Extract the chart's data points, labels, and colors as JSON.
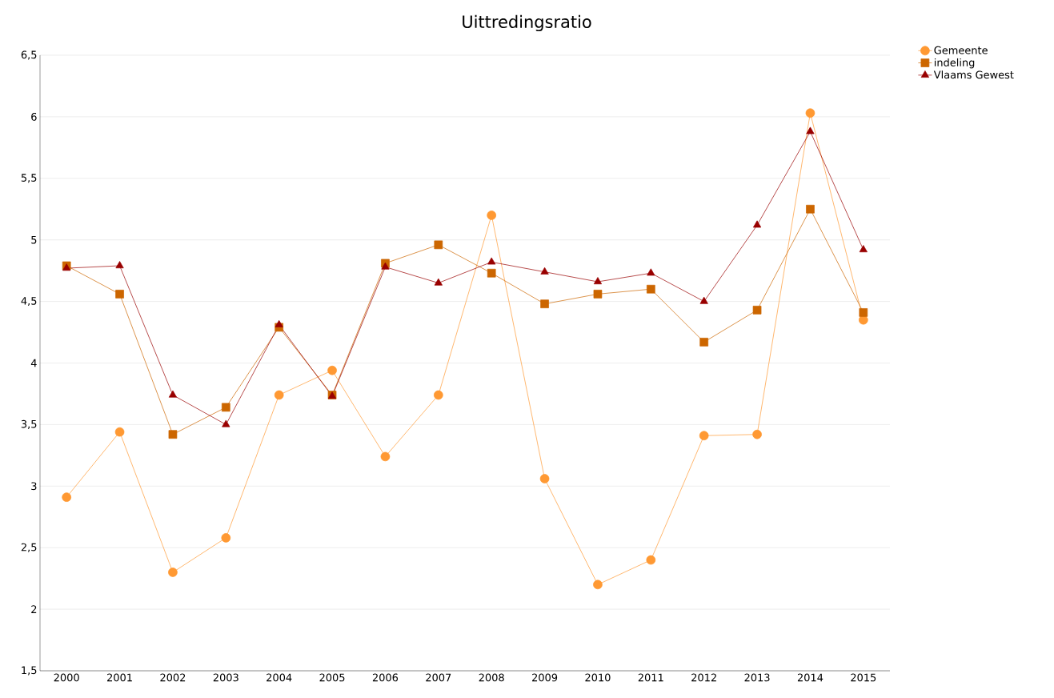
{
  "chart_data": {
    "type": "line",
    "title": "Uittredingsratio",
    "categories": [
      "2000",
      "2001",
      "2002",
      "2003",
      "2004",
      "2005",
      "2006",
      "2007",
      "2008",
      "2009",
      "2010",
      "2011",
      "2012",
      "2013",
      "2014",
      "2015"
    ],
    "series": [
      {
        "name": "Gemeente",
        "color": "#ff9933",
        "marker": "circle",
        "values": [
          2.91,
          3.44,
          2.3,
          2.58,
          3.74,
          3.94,
          3.24,
          3.74,
          5.2,
          3.06,
          2.2,
          2.4,
          3.41,
          3.42,
          6.03,
          4.35
        ]
      },
      {
        "name": "indeling",
        "color": "#cc6600",
        "marker": "square",
        "values": [
          4.79,
          4.56,
          3.42,
          3.64,
          4.29,
          3.74,
          4.81,
          4.96,
          4.73,
          4.48,
          4.56,
          4.6,
          4.17,
          4.43,
          5.25,
          4.41
        ]
      },
      {
        "name": "Vlaams Gewest",
        "color": "#990000",
        "marker": "triangle",
        "values": [
          4.77,
          4.79,
          3.74,
          3.5,
          4.31,
          3.73,
          4.78,
          4.65,
          4.82,
          4.74,
          4.66,
          4.73,
          4.5,
          5.12,
          5.88,
          4.92
        ]
      }
    ],
    "ylim": [
      1.5,
      6.5
    ],
    "yticks": [
      {
        "value": 1.5,
        "label": "1,5"
      },
      {
        "value": 2,
        "label": "2"
      },
      {
        "value": 2.5,
        "label": "2,5"
      },
      {
        "value": 3,
        "label": "3"
      },
      {
        "value": 3.5,
        "label": "3,5"
      },
      {
        "value": 4,
        "label": "4"
      },
      {
        "value": 4.5,
        "label": "4,5"
      },
      {
        "value": 5,
        "label": "5"
      },
      {
        "value": 5.5,
        "label": "5,5"
      },
      {
        "value": 6,
        "label": "6"
      },
      {
        "value": 6.5,
        "label": "6,5"
      }
    ],
    "grid": "y",
    "legend": "top right",
    "line_style": "solid"
  }
}
